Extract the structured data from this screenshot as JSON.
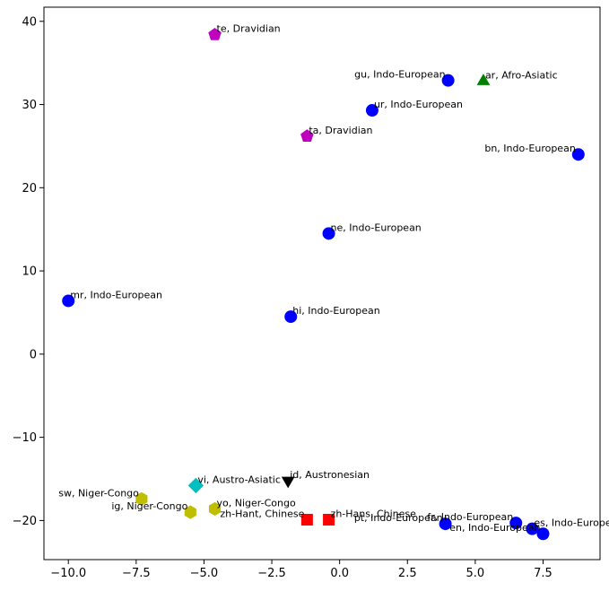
{
  "chart_data": {
    "type": "scatter",
    "title": "",
    "xlabel": "",
    "ylabel": "",
    "xlim": [
      -10.9,
      9.6
    ],
    "ylim": [
      -24.7,
      41.7
    ],
    "grid": false,
    "legend": "none",
    "xticks": [
      {
        "value": -10.0,
        "label": "−10.0"
      },
      {
        "value": -7.5,
        "label": "−7.5"
      },
      {
        "value": -5.0,
        "label": "−5.0"
      },
      {
        "value": -2.5,
        "label": "−2.5"
      },
      {
        "value": 0.0,
        "label": "0.0"
      },
      {
        "value": 2.5,
        "label": "2.5"
      },
      {
        "value": 5.0,
        "label": "5.0"
      },
      {
        "value": 7.5,
        "label": "7.5"
      }
    ],
    "yticks": [
      {
        "value": -20,
        "label": "−20"
      },
      {
        "value": -10,
        "label": "−10"
      },
      {
        "value": 0,
        "label": "0"
      },
      {
        "value": 10,
        "label": "10"
      },
      {
        "value": 20,
        "label": "20"
      },
      {
        "value": 30,
        "label": "30"
      },
      {
        "value": 40,
        "label": "40"
      }
    ],
    "families": {
      "Indo-European": {
        "color": "#0000ff",
        "marker": "circle"
      },
      "Dravidian": {
        "color": "#bf00bf",
        "marker": "pentagon"
      },
      "Afro-Asiatic": {
        "color": "#008000",
        "marker": "triangle-up"
      },
      "Austro-Asiatic": {
        "color": "#00bfbf",
        "marker": "diamond"
      },
      "Austronesian": {
        "color": "#000000",
        "marker": "triangle-down"
      },
      "Niger-Congo": {
        "color": "#bfbf00",
        "marker": "hexagon"
      },
      "Chinese": {
        "color": "#ff0000",
        "marker": "square"
      }
    },
    "points": [
      {
        "label": "te, Dravidian",
        "family": "Dravidian",
        "x": -4.6,
        "y": 38.4,
        "align": "start"
      },
      {
        "label": "gu, Indo-European",
        "family": "Indo-European",
        "x": 4.0,
        "y": 32.9,
        "align": "end"
      },
      {
        "label": "ar, Afro-Asiatic",
        "family": "Afro-Asiatic",
        "x": 5.3,
        "y": 32.8,
        "align": "start"
      },
      {
        "label": "ur, Indo-European",
        "family": "Indo-European",
        "x": 1.2,
        "y": 29.3,
        "align": "start"
      },
      {
        "label": "ta, Dravidian",
        "family": "Dravidian",
        "x": -1.2,
        "y": 26.2,
        "align": "start"
      },
      {
        "label": "bn, Indo-European",
        "family": "Indo-European",
        "x": 8.8,
        "y": 24.0,
        "align": "end"
      },
      {
        "label": "ne, Indo-European",
        "family": "Indo-European",
        "x": -0.4,
        "y": 14.5,
        "align": "start"
      },
      {
        "label": "mr, Indo-European",
        "family": "Indo-European",
        "x": -10.0,
        "y": 6.4,
        "align": "start"
      },
      {
        "label": "hi, Indo-European",
        "family": "Indo-European",
        "x": -1.8,
        "y": 4.5,
        "align": "start"
      },
      {
        "label": "vi, Austro-Asiatic",
        "family": "Austro-Asiatic",
        "x": -5.3,
        "y": -15.8,
        "align": "start"
      },
      {
        "label": "id, Austronesian",
        "family": "Austronesian",
        "x": -1.9,
        "y": -15.2,
        "align": "start"
      },
      {
        "label": "sw, Niger-Congo",
        "family": "Niger-Congo",
        "x": -7.3,
        "y": -17.4,
        "align": "end"
      },
      {
        "label": "ig, Niger-Congo",
        "family": "Niger-Congo",
        "x": -5.5,
        "y": -19.0,
        "align": "end"
      },
      {
        "label": "yo, Niger-Congo",
        "family": "Niger-Congo",
        "x": -4.6,
        "y": -18.6,
        "align": "start"
      },
      {
        "label": "zh-Hant, Chinese",
        "family": "Chinese",
        "x": -1.2,
        "y": -19.9,
        "align": "end"
      },
      {
        "label": "zh-Hans, Chinese",
        "family": "Chinese",
        "x": -0.4,
        "y": -19.9,
        "align": "start"
      },
      {
        "label": "pt, Indo-European",
        "family": "Indo-European",
        "x": 3.9,
        "y": -20.4,
        "align": "end"
      },
      {
        "label": "fr, Indo-European",
        "family": "Indo-European",
        "x": 6.5,
        "y": -20.3,
        "align": "end"
      },
      {
        "label": "es, Indo-European",
        "family": "Indo-European",
        "x": 7.1,
        "y": -21.0,
        "align": "start"
      },
      {
        "label": "en, Indo-European",
        "family": "Indo-European",
        "x": 7.5,
        "y": -21.6,
        "align": "end"
      }
    ]
  }
}
